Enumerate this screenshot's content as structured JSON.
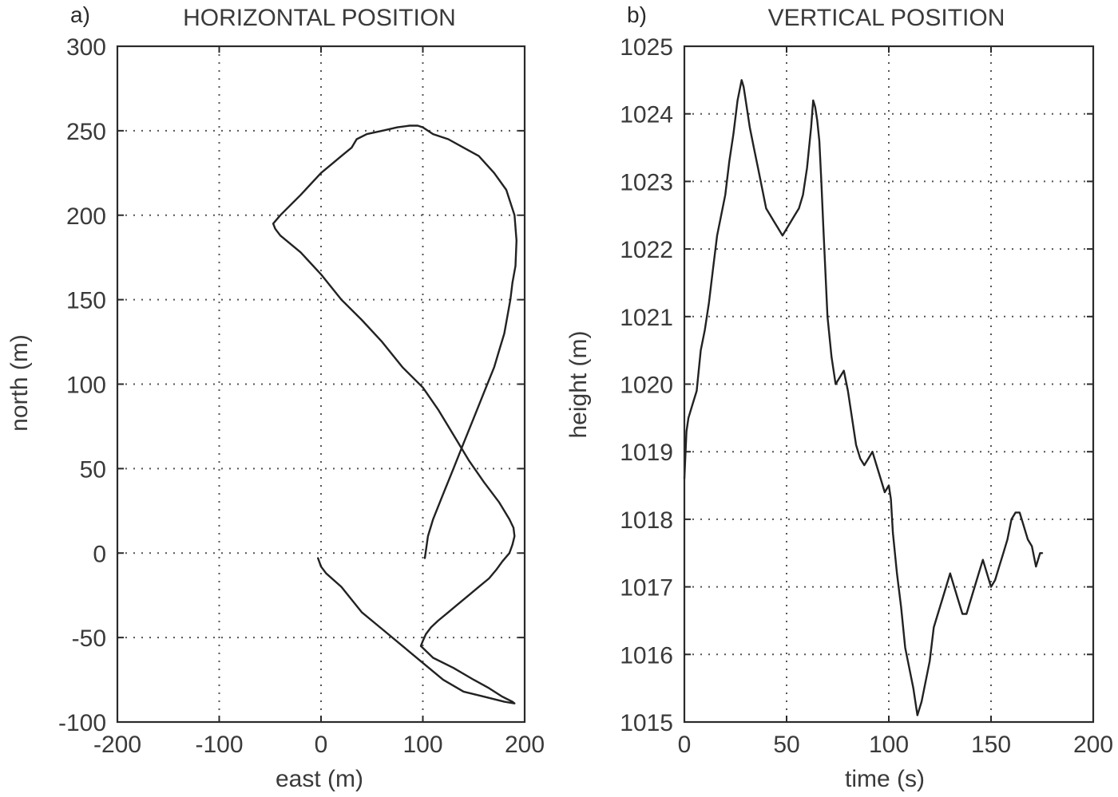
{
  "chart_data": [
    {
      "type": "line",
      "panel_label": "a)",
      "title": "HORIZONTAL POSITION",
      "xlabel": "east (m)",
      "ylabel": "north (m)",
      "xlim": [
        -200,
        200
      ],
      "ylim": [
        -100,
        300
      ],
      "xticks": [
        -200,
        -100,
        0,
        100,
        200
      ],
      "yticks": [
        -100,
        -50,
        0,
        50,
        100,
        150,
        200,
        250,
        300
      ],
      "grid": true,
      "series": [
        {
          "x": [
            -3,
            0,
            5,
            20,
            40,
            60,
            80,
            100,
            120,
            140,
            160,
            180,
            190,
            188,
            178,
            165,
            150,
            130,
            110,
            98,
            100,
            103,
            108,
            115,
            125,
            135,
            145,
            155,
            165,
            172,
            178,
            185,
            188,
            190,
            189,
            185,
            175,
            160,
            145,
            130,
            115,
            100,
            80,
            60,
            40,
            20,
            0,
            -20,
            -40,
            -45,
            -47,
            -40,
            -20,
            0,
            10,
            20,
            30,
            35,
            45,
            60,
            75,
            87,
            95,
            100,
            105,
            110,
            125,
            140,
            155,
            170,
            182,
            190,
            192,
            191,
            188,
            186,
            183,
            180,
            175,
            170,
            160,
            150,
            140,
            130,
            120,
            110,
            105,
            102
          ],
          "y": [
            -3,
            -8,
            -12,
            -20,
            -35,
            -45,
            -55,
            -65,
            -75,
            -82,
            -85,
            -88,
            -89,
            -88,
            -85,
            -80,
            -75,
            -68,
            -62,
            -55,
            -52,
            -48,
            -44,
            -40,
            -35,
            -30,
            -25,
            -20,
            -15,
            -10,
            -5,
            0,
            5,
            10,
            15,
            20,
            30,
            42,
            55,
            70,
            85,
            98,
            110,
            125,
            138,
            150,
            165,
            178,
            188,
            192,
            195,
            200,
            212,
            225,
            230,
            235,
            240,
            245,
            248,
            250,
            252,
            253,
            253,
            252,
            250,
            248,
            245,
            240,
            235,
            225,
            215,
            200,
            185,
            170,
            160,
            150,
            140,
            130,
            120,
            110,
            95,
            80,
            65,
            50,
            35,
            20,
            10,
            -3
          ],
          "note_points": []
        }
      ]
    },
    {
      "type": "line",
      "panel_label": "b)",
      "title": "VERTICAL POSITION",
      "xlabel": "time (s)",
      "ylabel": "height (m)",
      "xlim": [
        0,
        200
      ],
      "ylim": [
        1015,
        1025
      ],
      "xticks": [
        0,
        50,
        100,
        150,
        200
      ],
      "yticks": [
        1015,
        1016,
        1017,
        1018,
        1019,
        1020,
        1021,
        1022,
        1023,
        1024,
        1025
      ],
      "grid": true,
      "series": [
        {
          "x": [
            0,
            1,
            2,
            4,
            6,
            8,
            10,
            12,
            14,
            16,
            18,
            20,
            22,
            24,
            26,
            28,
            29,
            30,
            32,
            34,
            36,
            38,
            40,
            42,
            44,
            46,
            48,
            50,
            52,
            54,
            56,
            58,
            60,
            62,
            63,
            64,
            65,
            66,
            67,
            68,
            70,
            72,
            74,
            76,
            78,
            80,
            82,
            84,
            86,
            88,
            90,
            92,
            94,
            96,
            98,
            100,
            101,
            102,
            104,
            106,
            108,
            110,
            112,
            114,
            116,
            118,
            120,
            122,
            124,
            126,
            128,
            130,
            132,
            134,
            136,
            138,
            140,
            142,
            144,
            146,
            148,
            150,
            152,
            154,
            156,
            158,
            160,
            162,
            164,
            166,
            168,
            170,
            172,
            174,
            175
          ],
          "y": [
            1018.6,
            1019.3,
            1019.5,
            1019.7,
            1019.9,
            1020.5,
            1020.8,
            1021.2,
            1021.7,
            1022.2,
            1022.5,
            1022.8,
            1023.3,
            1023.7,
            1024.2,
            1024.5,
            1024.4,
            1024.2,
            1023.8,
            1023.5,
            1023.2,
            1022.9,
            1022.6,
            1022.5,
            1022.4,
            1022.3,
            1022.2,
            1022.3,
            1022.4,
            1022.5,
            1022.6,
            1022.8,
            1023.2,
            1023.8,
            1024.2,
            1024.1,
            1023.9,
            1023.6,
            1023.0,
            1022.3,
            1021.0,
            1020.4,
            1020.0,
            1020.1,
            1020.2,
            1019.9,
            1019.5,
            1019.1,
            1018.9,
            1018.8,
            1018.9,
            1019.0,
            1018.8,
            1018.6,
            1018.4,
            1018.5,
            1018.3,
            1017.8,
            1017.2,
            1016.7,
            1016.1,
            1015.8,
            1015.5,
            1015.1,
            1015.3,
            1015.6,
            1015.9,
            1016.4,
            1016.6,
            1016.8,
            1017.0,
            1017.2,
            1017.0,
            1016.8,
            1016.6,
            1016.6,
            1016.8,
            1017.0,
            1017.2,
            1017.4,
            1017.2,
            1017.0,
            1017.1,
            1017.3,
            1017.5,
            1017.7,
            1018.0,
            1018.1,
            1018.1,
            1017.9,
            1017.7,
            1017.6,
            1017.3,
            1017.5,
            1017.5
          ]
        }
      ]
    }
  ]
}
